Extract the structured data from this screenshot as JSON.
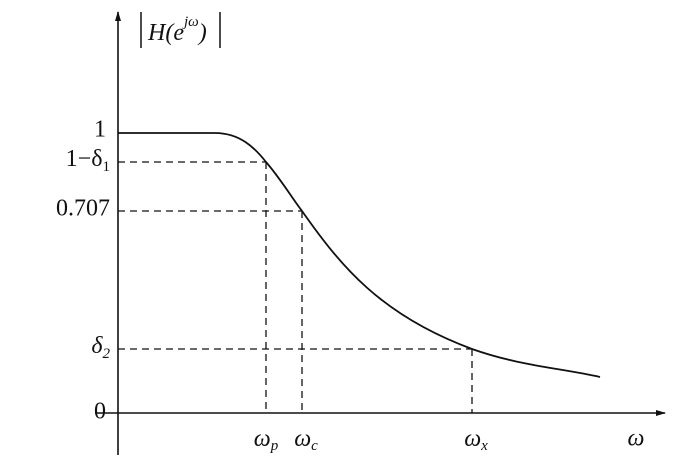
{
  "y_axis_label": {
    "open": "H(e",
    "superscript": "jω",
    "close": ")"
  },
  "y_levels": [
    {
      "main": "1"
    },
    {
      "main": "1−δ",
      "sub": "1"
    },
    {
      "main": "0.707"
    },
    {
      "main": "δ",
      "sub": "2"
    },
    {
      "main": "0"
    }
  ],
  "x_points": [
    {
      "main": "ω",
      "sub": "p"
    },
    {
      "main": "ω",
      "sub": "c"
    },
    {
      "main": "ω",
      "sub": "x"
    }
  ],
  "x_axis_label": "ω"
}
